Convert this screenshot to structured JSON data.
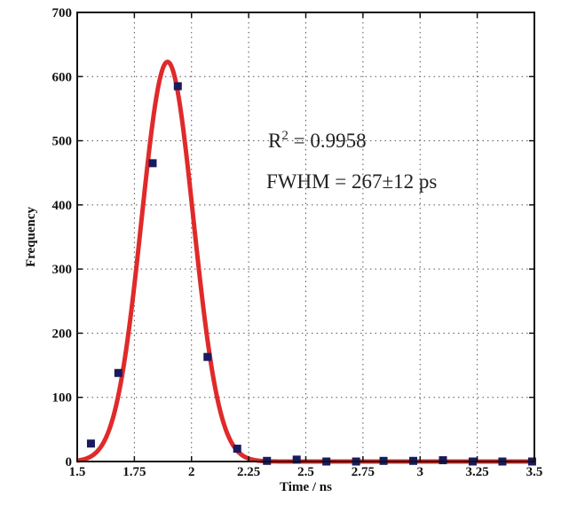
{
  "chart_data": {
    "type": "scatter",
    "xlabel": "Time / ns",
    "ylabel": "Frequency",
    "xlim": [
      1.5,
      3.5
    ],
    "ylim": [
      0,
      700
    ],
    "xticks": [
      "1.5",
      "1.75",
      "2",
      "2.25",
      "2.5",
      "2.75",
      "3",
      "3.25",
      "3.5"
    ],
    "xtick_values": [
      1.5,
      1.75,
      2.0,
      2.25,
      2.5,
      2.75,
      3.0,
      3.25,
      3.5
    ],
    "yticks": [
      "0",
      "100",
      "200",
      "300",
      "400",
      "500",
      "600",
      "700"
    ],
    "ytick_values": [
      0,
      100,
      200,
      300,
      400,
      500,
      600,
      700
    ],
    "grid": true,
    "series": [
      {
        "kind": "points",
        "color": "#1a1a5e",
        "x": [
          1.56,
          1.68,
          1.83,
          1.94,
          2.07,
          2.2,
          2.33,
          2.46,
          2.59,
          2.72,
          2.84,
          2.97,
          3.1,
          3.23,
          3.36,
          3.49
        ],
        "y": [
          28,
          138,
          465,
          585,
          163,
          20,
          1,
          3,
          0,
          0,
          1,
          1,
          2,
          0,
          0,
          0
        ]
      },
      {
        "kind": "fit",
        "color": "#e02a2a",
        "model": "gaussian",
        "amplitude": 623,
        "center": 1.895,
        "fwhm": 0.267
      }
    ],
    "annotations": {
      "r2_prefix": "R",
      "r2_sup": "2",
      "r2_value": " = 0.9958",
      "fwhm_text": "FWHM = 267±12 ps"
    }
  }
}
